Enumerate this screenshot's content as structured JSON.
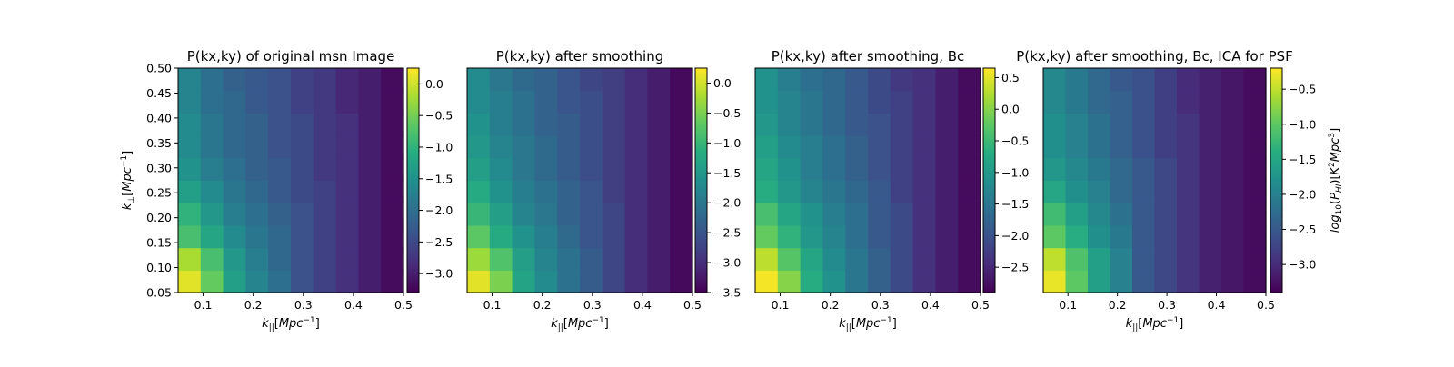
{
  "chart_data": [
    {
      "type": "heatmap",
      "title": "P(kx,ky) of original msn Image",
      "xlabel": "k_||[Mpc^-1]",
      "ylabel": "k_⊥[Mpc^-1]",
      "xlim": [
        0.05,
        0.5
      ],
      "ylim": [
        0.05,
        0.5
      ],
      "x_ticks": [
        "0.1",
        "0.2",
        "0.3",
        "0.4",
        "0.5"
      ],
      "y_ticks": [
        "0.05",
        "0.10",
        "0.15",
        "0.20",
        "0.25",
        "0.30",
        "0.35",
        "0.40",
        "0.45",
        "0.50"
      ],
      "colormap": "viridis",
      "colorbar_range": [
        -3.3,
        0.25
      ],
      "colorbar_ticks": [
        "0.0",
        "−0.5",
        "−1.0",
        "−1.5",
        "−2.0",
        "−2.5",
        "−3.0"
      ],
      "colorbar_label": "",
      "z_rows_bottom_to_top": [
        [
          0.1,
          -0.6,
          -1.3,
          -1.7,
          -2.0,
          -2.4,
          -2.6,
          -2.8,
          -3.0,
          -3.2
        ],
        [
          -0.2,
          -0.8,
          -1.4,
          -1.8,
          -2.1,
          -2.4,
          -2.6,
          -2.8,
          -3.0,
          -3.2
        ],
        [
          -0.8,
          -1.2,
          -1.6,
          -1.9,
          -2.1,
          -2.4,
          -2.6,
          -2.8,
          -3.0,
          -3.2
        ],
        [
          -1.0,
          -1.4,
          -1.8,
          -2.0,
          -2.2,
          -2.4,
          -2.6,
          -2.8,
          -3.0,
          -3.2
        ],
        [
          -1.3,
          -1.6,
          -1.9,
          -2.1,
          -2.3,
          -2.5,
          -2.6,
          -2.8,
          -3.0,
          -3.2
        ],
        [
          -1.5,
          -1.8,
          -2.0,
          -2.2,
          -2.3,
          -2.5,
          -2.7,
          -2.8,
          -3.0,
          -3.2
        ],
        [
          -1.6,
          -1.9,
          -2.1,
          -2.2,
          -2.4,
          -2.5,
          -2.7,
          -2.8,
          -3.0,
          -3.2
        ],
        [
          -1.6,
          -1.9,
          -2.1,
          -2.2,
          -2.4,
          -2.5,
          -2.7,
          -2.8,
          -3.0,
          -3.2
        ],
        [
          -1.7,
          -2.0,
          -2.1,
          -2.3,
          -2.4,
          -2.6,
          -2.7,
          -2.9,
          -3.0,
          -3.2
        ],
        [
          -1.7,
          -2.0,
          -2.2,
          -2.3,
          -2.4,
          -2.6,
          -2.7,
          -2.9,
          -3.0,
          -3.2
        ]
      ]
    },
    {
      "type": "heatmap",
      "title": "P(kx,ky) after smoothing",
      "xlabel": "k_||[Mpc^-1]",
      "ylabel": "",
      "xlim": [
        0.05,
        0.5
      ],
      "ylim": [
        0.05,
        0.5
      ],
      "x_ticks": [
        "0.1",
        "0.2",
        "0.3",
        "0.4",
        "0.5"
      ],
      "y_ticks": [],
      "colormap": "viridis",
      "colorbar_range": [
        -3.5,
        0.25
      ],
      "colorbar_ticks": [
        "0.0",
        "−0.5",
        "−1.0",
        "−1.5",
        "−2.0",
        "−2.5",
        "−3.0",
        "−3.5"
      ],
      "colorbar_label": "",
      "z_rows_bottom_to_top": [
        [
          0.1,
          -0.5,
          -1.3,
          -1.7,
          -2.1,
          -2.4,
          -2.7,
          -3.0,
          -3.2,
          -3.4
        ],
        [
          -0.3,
          -0.8,
          -1.4,
          -1.8,
          -2.1,
          -2.4,
          -2.7,
          -3.0,
          -3.2,
          -3.4
        ],
        [
          -0.7,
          -1.2,
          -1.6,
          -1.9,
          -2.2,
          -2.5,
          -2.7,
          -3.0,
          -3.2,
          -3.4
        ],
        [
          -1.0,
          -1.4,
          -1.8,
          -2.0,
          -2.3,
          -2.5,
          -2.7,
          -3.0,
          -3.2,
          -3.4
        ],
        [
          -1.2,
          -1.6,
          -1.9,
          -2.1,
          -2.3,
          -2.5,
          -2.8,
          -3.0,
          -3.2,
          -3.4
        ],
        [
          -1.4,
          -1.7,
          -2.0,
          -2.2,
          -2.4,
          -2.6,
          -2.8,
          -3.0,
          -3.2,
          -3.4
        ],
        [
          -1.5,
          -1.8,
          -2.0,
          -2.2,
          -2.4,
          -2.6,
          -2.8,
          -3.0,
          -3.2,
          -3.4
        ],
        [
          -1.6,
          -1.9,
          -2.1,
          -2.3,
          -2.4,
          -2.6,
          -2.8,
          -3.0,
          -3.2,
          -3.4
        ],
        [
          -1.7,
          -1.9,
          -2.1,
          -2.3,
          -2.5,
          -2.6,
          -2.8,
          -3.0,
          -3.2,
          -3.4
        ],
        [
          -1.7,
          -2.0,
          -2.2,
          -2.3,
          -2.5,
          -2.7,
          -2.8,
          -3.0,
          -3.2,
          -3.4
        ]
      ]
    },
    {
      "type": "heatmap",
      "title": "P(kx,ky) after smoothing, Bc",
      "xlabel": "k_||[Mpc^-1]",
      "ylabel": "",
      "xlim": [
        0.05,
        0.5
      ],
      "ylim": [
        0.05,
        0.5
      ],
      "x_ticks": [
        "0.1",
        "0.2",
        "0.3",
        "0.4",
        "0.5"
      ],
      "y_ticks": [],
      "colormap": "viridis",
      "colorbar_range": [
        -2.9,
        0.65
      ],
      "colorbar_ticks": [
        "0.5",
        "0.0",
        "−0.5",
        "−1.0",
        "−1.5",
        "−2.0",
        "−2.5"
      ],
      "colorbar_label": "",
      "z_rows_bottom_to_top": [
        [
          0.6,
          0.0,
          -0.7,
          -1.1,
          -1.5,
          -1.8,
          -2.1,
          -2.4,
          -2.6,
          -2.8
        ],
        [
          0.3,
          -0.3,
          -0.8,
          -1.2,
          -1.5,
          -1.8,
          -2.1,
          -2.4,
          -2.6,
          -2.8
        ],
        [
          -0.2,
          -0.6,
          -1.0,
          -1.3,
          -1.6,
          -1.9,
          -2.1,
          -2.4,
          -2.6,
          -2.8
        ],
        [
          -0.4,
          -0.8,
          -1.1,
          -1.4,
          -1.6,
          -1.9,
          -2.1,
          -2.4,
          -2.6,
          -2.8
        ],
        [
          -0.7,
          -1.0,
          -1.3,
          -1.5,
          -1.7,
          -1.9,
          -2.2,
          -2.4,
          -2.6,
          -2.8
        ],
        [
          -0.8,
          -1.1,
          -1.4,
          -1.6,
          -1.8,
          -2.0,
          -2.2,
          -2.4,
          -2.6,
          -2.8
        ],
        [
          -0.9,
          -1.2,
          -1.4,
          -1.6,
          -1.8,
          -2.0,
          -2.2,
          -2.4,
          -2.6,
          -2.8
        ],
        [
          -1.0,
          -1.3,
          -1.5,
          -1.7,
          -1.9,
          -2.0,
          -2.2,
          -2.4,
          -2.6,
          -2.8
        ],
        [
          -1.1,
          -1.3,
          -1.5,
          -1.7,
          -1.9,
          -2.1,
          -2.2,
          -2.4,
          -2.6,
          -2.8
        ],
        [
          -1.1,
          -1.4,
          -1.6,
          -1.7,
          -1.9,
          -2.1,
          -2.3,
          -2.4,
          -2.6,
          -2.8
        ]
      ]
    },
    {
      "type": "heatmap",
      "title": "P(kx,ky) after smoothing, Bc, ICA for PSF",
      "xlabel": "k_||[Mpc^-1]",
      "ylabel": "",
      "xlim": [
        0.05,
        0.5
      ],
      "ylim": [
        0.05,
        0.5
      ],
      "x_ticks": [
        "0.1",
        "0.2",
        "0.3",
        "0.4",
        "0.5"
      ],
      "y_ticks": [],
      "colormap": "viridis",
      "colorbar_range": [
        -3.4,
        -0.2
      ],
      "colorbar_ticks": [
        "−0.5",
        "−1.0",
        "−1.5",
        "−2.0",
        "−2.5",
        "−3.0"
      ],
      "colorbar_label": "log_10(P_HI)[K^2 Mpc^3]",
      "z_rows_bottom_to_top": [
        [
          -0.3,
          -1.0,
          -1.6,
          -2.0,
          -2.5,
          -2.7,
          -2.9,
          -3.1,
          -3.2,
          -3.3
        ],
        [
          -0.5,
          -1.1,
          -1.6,
          -2.0,
          -2.5,
          -2.7,
          -2.9,
          -3.1,
          -3.2,
          -3.3
        ],
        [
          -1.0,
          -1.4,
          -1.8,
          -2.1,
          -2.5,
          -2.7,
          -2.9,
          -3.1,
          -3.2,
          -3.3
        ],
        [
          -1.2,
          -1.6,
          -1.9,
          -2.2,
          -2.5,
          -2.7,
          -2.9,
          -3.1,
          -3.2,
          -3.3
        ],
        [
          -1.5,
          -1.8,
          -2.0,
          -2.3,
          -2.5,
          -2.7,
          -2.9,
          -3.1,
          -3.2,
          -3.3
        ],
        [
          -1.7,
          -1.9,
          -2.1,
          -2.3,
          -2.5,
          -2.7,
          -2.9,
          -3.1,
          -3.2,
          -3.3
        ],
        [
          -1.8,
          -2.0,
          -2.2,
          -2.4,
          -2.6,
          -2.8,
          -2.9,
          -3.1,
          -3.2,
          -3.3
        ],
        [
          -1.8,
          -2.0,
          -2.2,
          -2.4,
          -2.6,
          -2.8,
          -2.9,
          -3.1,
          -3.2,
          -3.3
        ],
        [
          -1.9,
          -2.1,
          -2.3,
          -2.4,
          -2.6,
          -2.8,
          -3.0,
          -3.1,
          -3.2,
          -3.3
        ],
        [
          -1.9,
          -2.1,
          -2.3,
          -2.5,
          -2.6,
          -2.8,
          -3.0,
          -3.1,
          -3.2,
          -3.3
        ]
      ]
    }
  ]
}
